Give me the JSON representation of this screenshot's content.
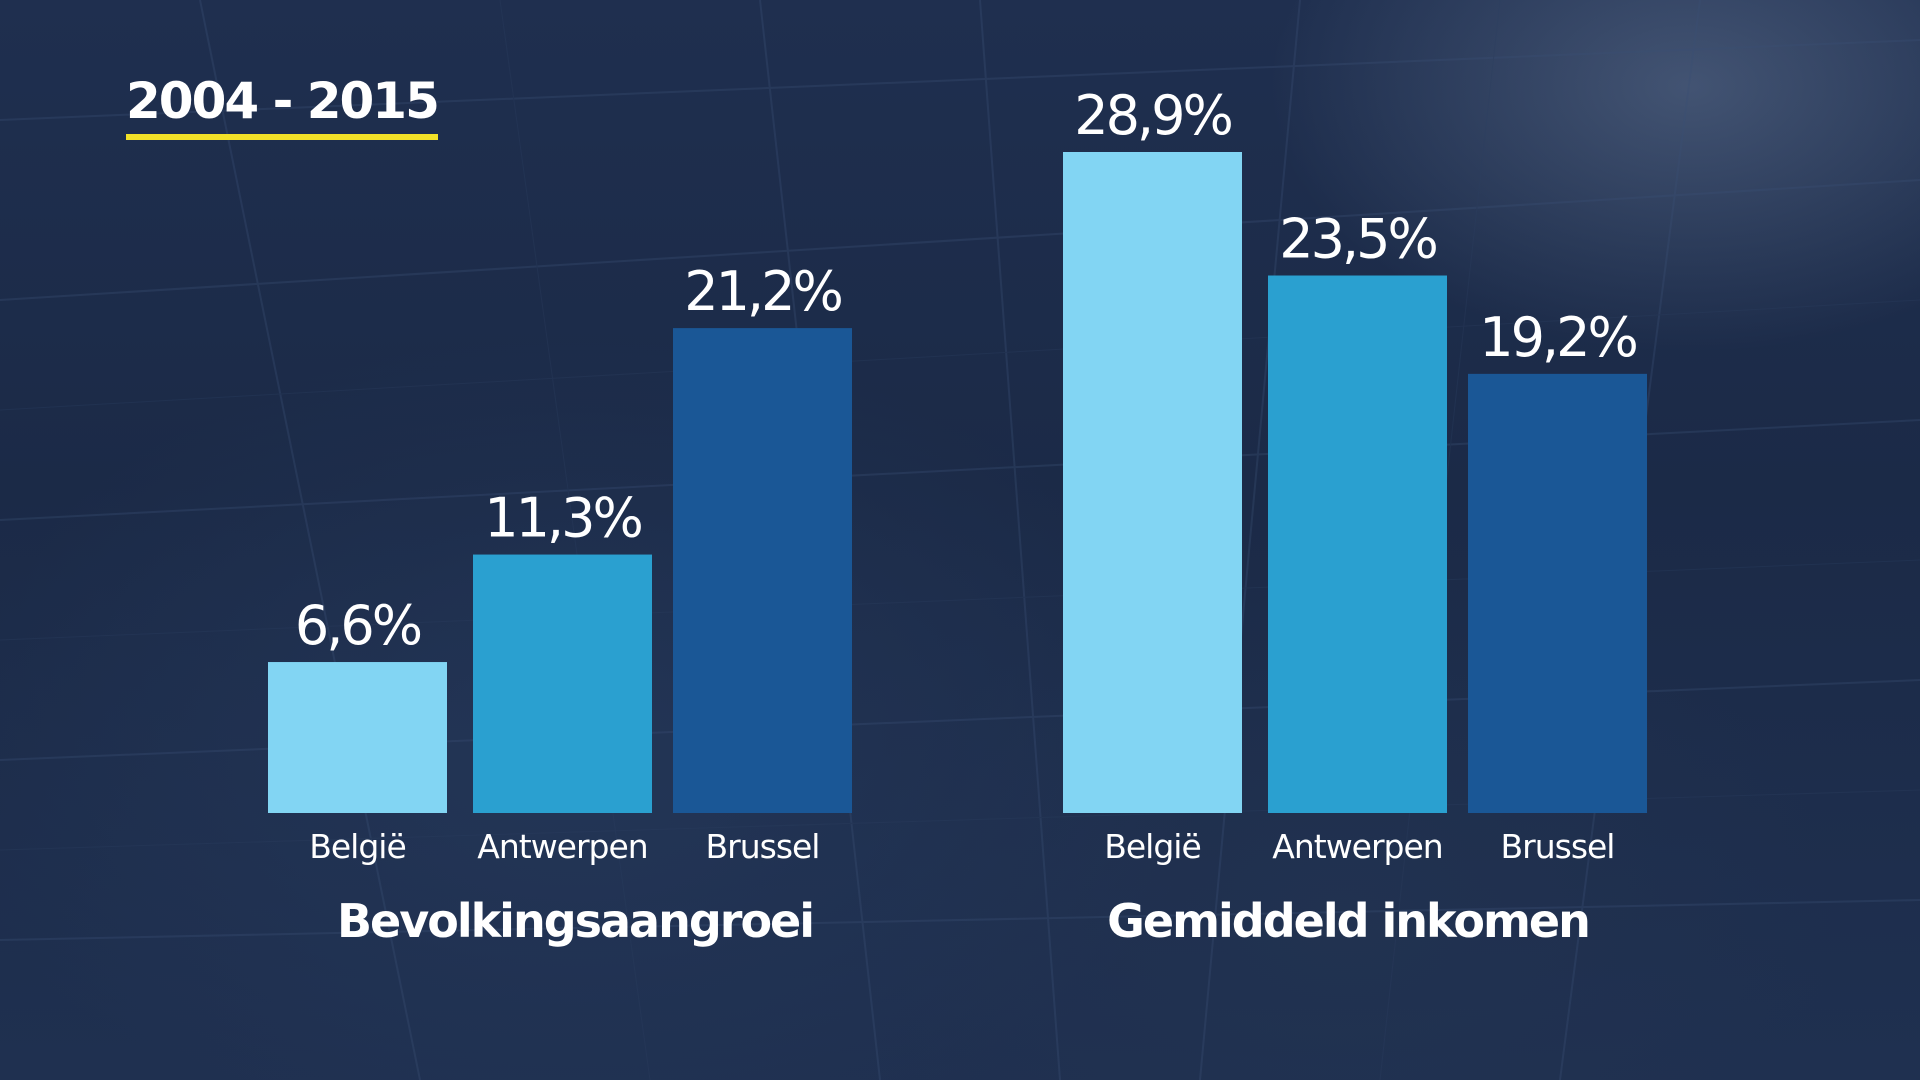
{
  "period_label": "2004 - 2015",
  "colors": {
    "accent_underline": "#f2e128",
    "belgie": "#82d5f3",
    "antwerpen": "#2aa0d0",
    "brussel": "#1a5796"
  },
  "chart_data": [
    {
      "type": "bar",
      "title": "Bevolkingsaangroei",
      "categories": [
        "België",
        "Antwerpen",
        "Brussel"
      ],
      "values": [
        6.6,
        11.3,
        21.2
      ],
      "value_labels": [
        "6,6%",
        "11,3%",
        "21,2%"
      ],
      "colors": [
        "#82d5f3",
        "#2aa0d0",
        "#1a5796"
      ],
      "unit": "%",
      "ylim": [
        0,
        28.9
      ],
      "grid": false,
      "legend": "none"
    },
    {
      "type": "bar",
      "title": "Gemiddeld inkomen",
      "categories": [
        "België",
        "Antwerpen",
        "Brussel"
      ],
      "values": [
        28.9,
        23.5,
        19.2
      ],
      "value_labels": [
        "28,9%",
        "23,5%",
        "19,2%"
      ],
      "colors": [
        "#82d5f3",
        "#2aa0d0",
        "#1a5796"
      ],
      "unit": "%",
      "ylim": [
        0,
        28.9
      ],
      "grid": false,
      "legend": "none"
    }
  ]
}
